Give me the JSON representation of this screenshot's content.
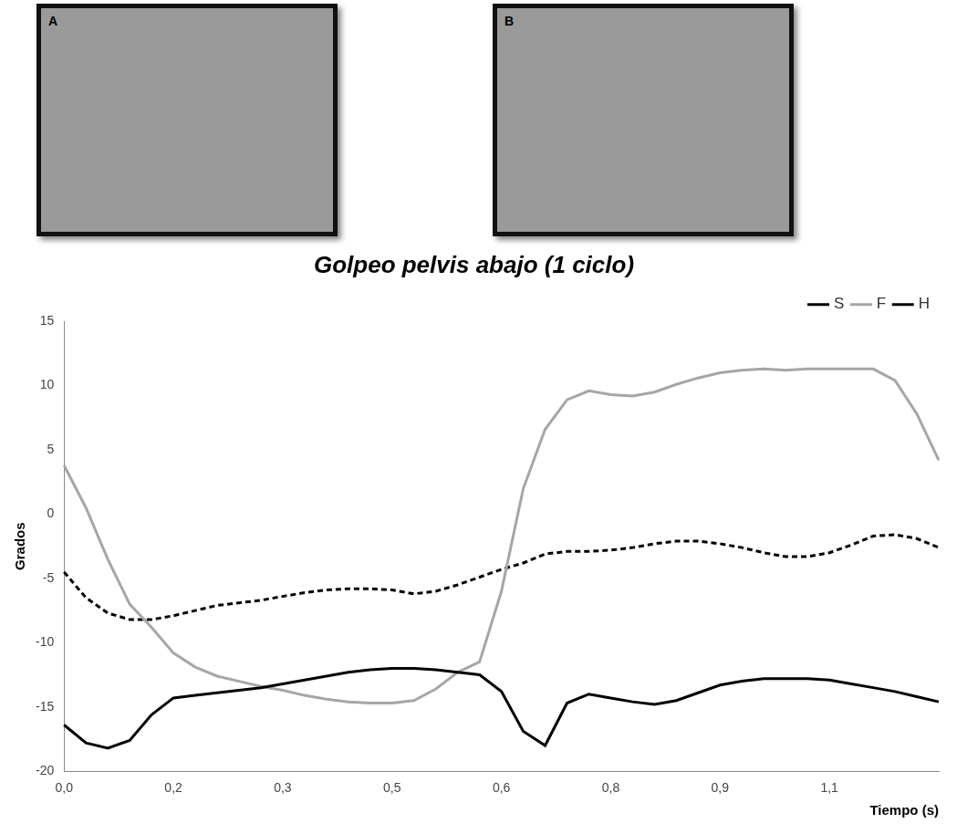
{
  "photos": [
    {
      "label": "A"
    },
    {
      "label": "B"
    }
  ],
  "chart_data": {
    "type": "line",
    "title": "Golpeo pelvis abajo (1 ciclo)",
    "x_label": "Tiempo (s)",
    "y_label": "Grados",
    "categories": [
      "0,0",
      null,
      null,
      null,
      null,
      "0,2",
      null,
      null,
      null,
      null,
      "0,3",
      null,
      null,
      null,
      null,
      "0,5",
      null,
      null,
      null,
      null,
      "0,6",
      null,
      null,
      null,
      null,
      "0,8",
      null,
      null,
      null,
      null,
      "0,9",
      null,
      null,
      null,
      null,
      "1,1",
      null,
      null,
      null,
      null,
      null
    ],
    "series": [
      {
        "name": "S",
        "color": "#000000",
        "line_style": "solid",
        "marker": "none",
        "values": [
          -16.4,
          -17.8,
          -18.2,
          -17.6,
          -15.6,
          -14.3,
          -14.1,
          -13.9,
          -13.7,
          -13.5,
          -13.2,
          -12.9,
          -12.6,
          -12.3,
          -12.1,
          -12.0,
          -12.0,
          -12.1,
          -12.3,
          -12.5,
          -13.8,
          -16.9,
          -18.0,
          -14.7,
          -14.0,
          -14.3,
          -14.6,
          -14.8,
          -14.5,
          -13.9,
          -13.3,
          -13.0,
          -12.8,
          -12.8,
          -12.8,
          -12.9,
          -13.2,
          -13.5,
          -13.8,
          -14.2,
          -14.6
        ]
      },
      {
        "name": "F",
        "color": "#a6a6a6",
        "line_style": "solid",
        "marker": "none",
        "values": [
          3.8,
          0.5,
          -3.5,
          -7.0,
          -8.8,
          -10.8,
          -11.9,
          -12.6,
          -13.0,
          -13.4,
          -13.7,
          -14.1,
          -14.4,
          -14.6,
          -14.7,
          -14.7,
          -14.5,
          -13.6,
          -12.3,
          -11.5,
          -6.0,
          2.0,
          6.6,
          8.9,
          9.6,
          9.3,
          9.2,
          9.5,
          10.1,
          10.6,
          11.0,
          11.2,
          11.3,
          11.2,
          11.3,
          11.3,
          11.3,
          11.3,
          10.4,
          7.8,
          4.2
        ]
      },
      {
        "name": "H",
        "color": "#000000",
        "line_style": "dashed",
        "marker": "none",
        "values": [
          -4.5,
          -6.5,
          -7.7,
          -8.2,
          -8.2,
          -7.9,
          -7.5,
          -7.1,
          -6.9,
          -6.7,
          -6.4,
          -6.1,
          -5.9,
          -5.8,
          -5.8,
          -5.9,
          -6.2,
          -6.0,
          -5.5,
          -4.9,
          -4.3,
          -3.8,
          -3.1,
          -2.9,
          -2.9,
          -2.8,
          -2.6,
          -2.3,
          -2.1,
          -2.1,
          -2.3,
          -2.6,
          -3.0,
          -3.3,
          -3.3,
          -3.0,
          -2.4,
          -1.7,
          -1.6,
          -1.9,
          -2.6
        ]
      }
    ],
    "ylim": [
      -20,
      15
    ],
    "yticks": [
      -20,
      -15,
      -10,
      -5,
      0,
      5,
      10,
      15
    ],
    "grid": false,
    "legend": "top right"
  }
}
